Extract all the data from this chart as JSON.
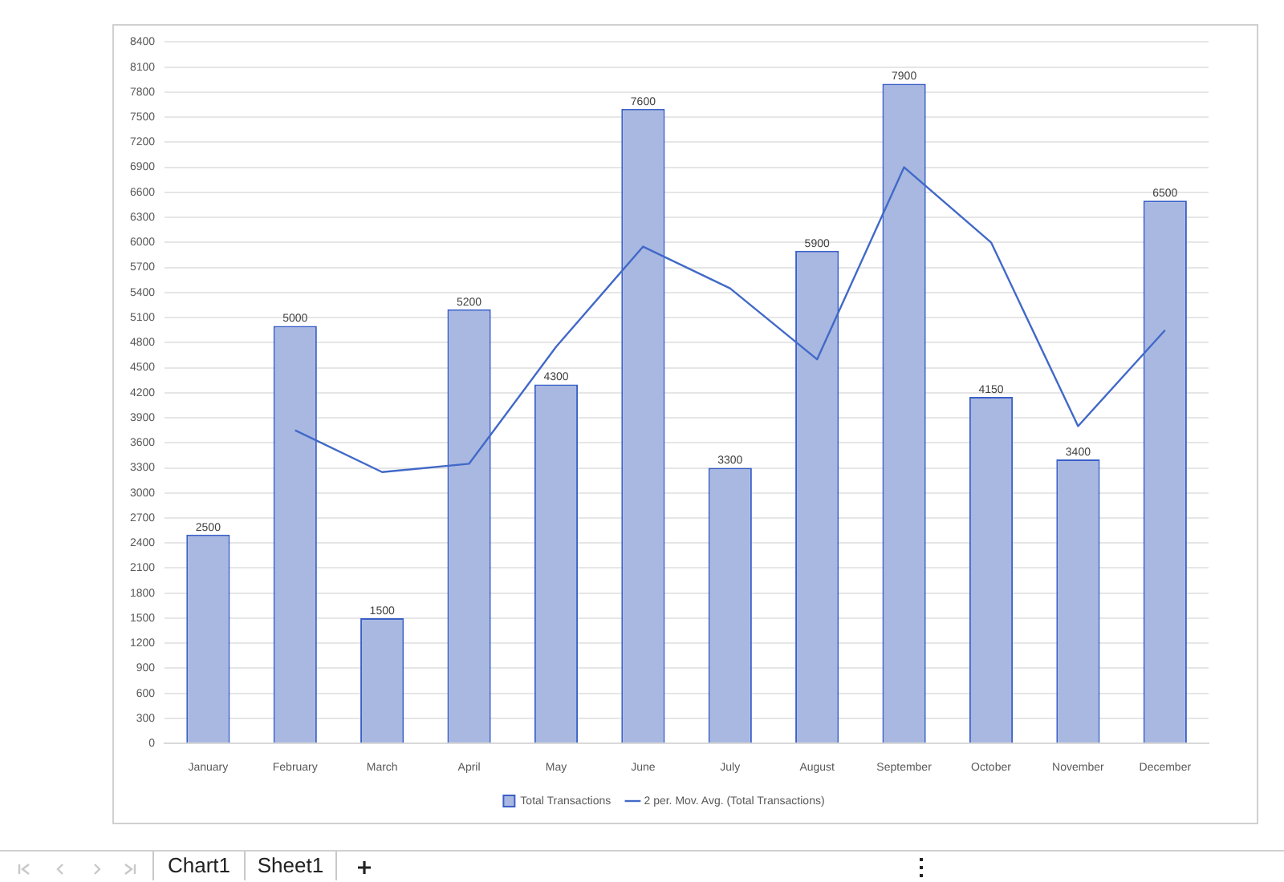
{
  "chart_data": {
    "type": "bar",
    "categories": [
      "January",
      "February",
      "March",
      "April",
      "May",
      "June",
      "July",
      "August",
      "September",
      "October",
      "November",
      "December"
    ],
    "series": [
      {
        "name": "Total Transactions",
        "color": "#a9b8e0",
        "values": [
          2500,
          5000,
          1500,
          5200,
          4300,
          7600,
          3300,
          5900,
          7900,
          4150,
          3400,
          6500
        ],
        "value_labels": [
          "2500",
          "5000",
          "1500",
          "5200",
          "4300",
          "7600",
          "3300",
          "5900",
          "7900",
          "4150",
          "3400",
          "6500"
        ]
      },
      {
        "name": "2 per. Mov. Avg. (Total Transactions)",
        "type": "line",
        "color": "#4169c8",
        "values": [
          null,
          3750,
          3250,
          3350,
          4750,
          5950,
          5450,
          4600,
          6900,
          6000,
          3800,
          4950
        ]
      }
    ],
    "ylim": [
      0,
      8400
    ],
    "yticks": [
      0,
      300,
      600,
      900,
      1200,
      1500,
      1800,
      2100,
      2400,
      2700,
      3000,
      3300,
      3600,
      3900,
      4200,
      4500,
      4800,
      5100,
      5400,
      5700,
      6000,
      6300,
      6600,
      6900,
      7200,
      7500,
      7800,
      8100,
      8400
    ],
    "grid": "y",
    "legend": "bottom",
    "marker": "none",
    "annotations": [
      "Chart1",
      "Sheet1"
    ]
  }
}
